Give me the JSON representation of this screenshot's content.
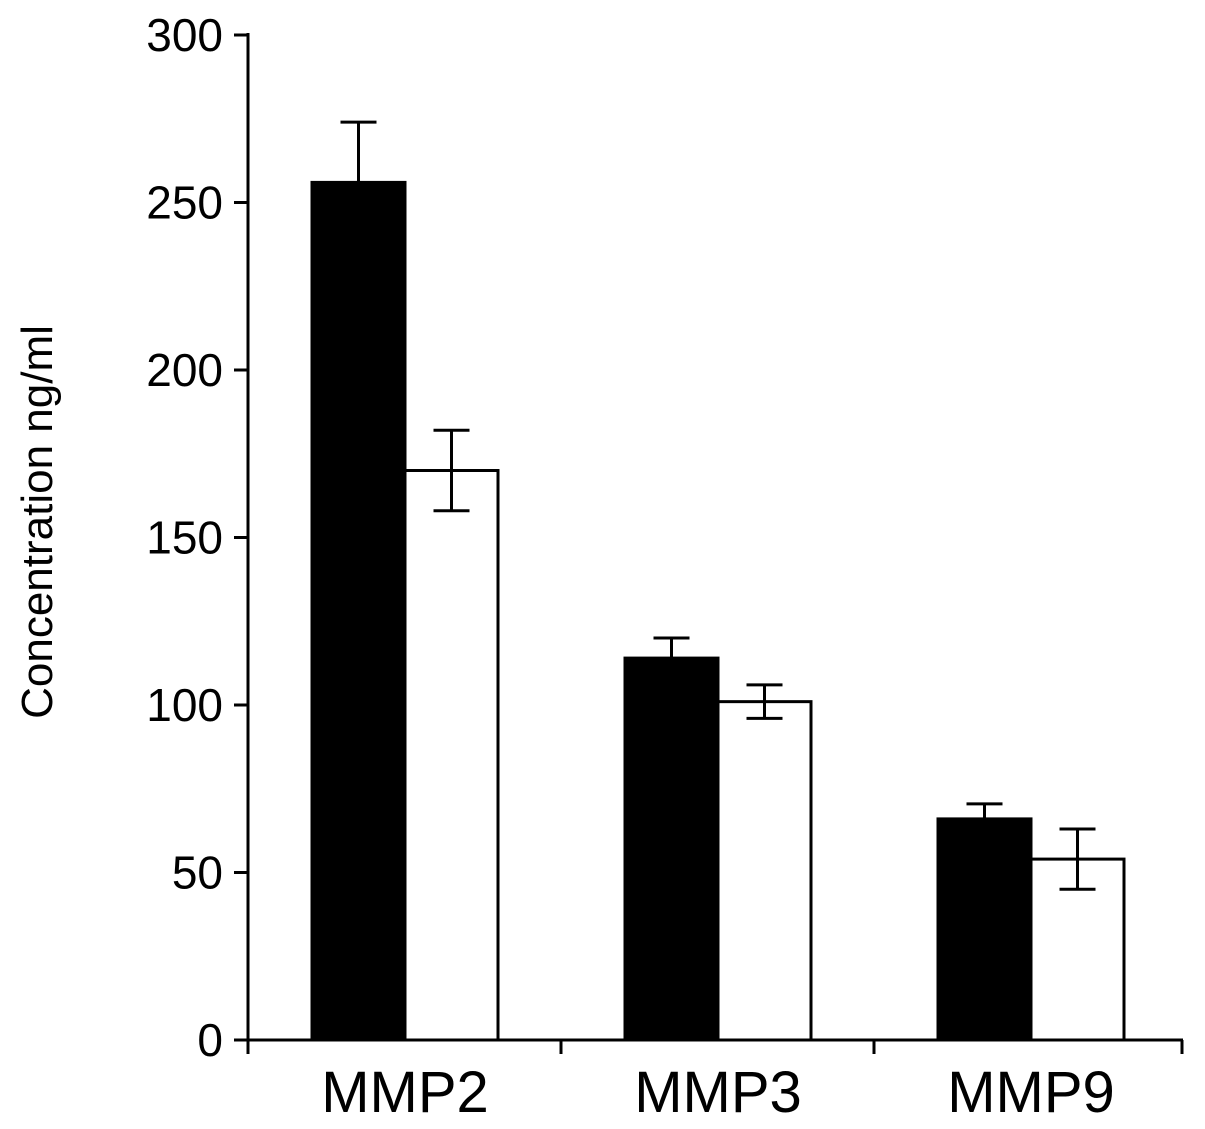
{
  "chart_data": {
    "type": "bar",
    "title": "",
    "xlabel": "",
    "ylabel": "Concentration ng/ml",
    "categories": [
      "MMP2",
      "MMP3",
      "MMP9"
    ],
    "ylim": [
      0,
      300
    ],
    "yticks": [
      0,
      50,
      100,
      150,
      200,
      250,
      300
    ],
    "grid": false,
    "legend": "none",
    "series": [
      {
        "fill": "#000000",
        "values": [
          256,
          114,
          66
        ],
        "error": [
          18,
          6,
          4.5
        ]
      },
      {
        "fill": "#ffffff",
        "values": [
          170,
          101,
          54
        ],
        "error": [
          12,
          5,
          9
        ]
      }
    ]
  }
}
